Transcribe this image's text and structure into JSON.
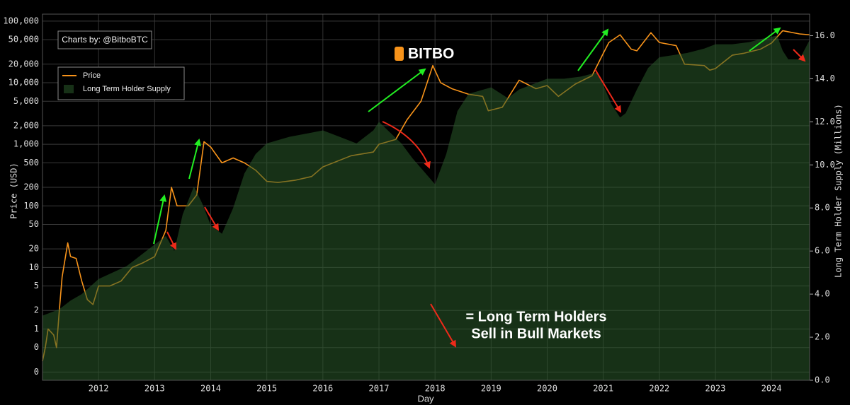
{
  "chart_data": {
    "type": "line",
    "credit": "Charts by: @BitboBTC",
    "logo": "BITBO",
    "annotation": [
      "= Long Term Holders",
      "Sell in Bull Markets"
    ],
    "xlabel": "Day",
    "ylabel": "Price (USD)",
    "y2label": "Long Term Holder Supply (Millions)",
    "log_scale": true,
    "grid": true,
    "legend": "upper left",
    "xlim": [
      2011.0,
      2024.68
    ],
    "xticks": [
      2012,
      2013,
      2014,
      2015,
      2016,
      2017,
      2018,
      2019,
      2020,
      2021,
      2022,
      2023,
      2024
    ],
    "ylim": [
      0.147,
      130000
    ],
    "yticks": [
      {
        "value": 0.2,
        "label": "0"
      },
      {
        "value": 0.5,
        "label": "0"
      },
      1,
      2,
      5,
      10,
      20,
      50,
      100,
      200,
      500,
      {
        "value": 1000,
        "label": "1,000"
      },
      {
        "value": 2000,
        "label": "2,000"
      },
      {
        "value": 5000,
        "label": "5,000"
      },
      {
        "value": 10000,
        "label": "10,000"
      },
      {
        "value": 20000,
        "label": "20,000"
      },
      {
        "value": 50000,
        "label": "50,000"
      },
      {
        "value": 100000,
        "label": "100,000"
      }
    ],
    "y2lim": [
      0,
      17
    ],
    "y2ticks": [
      {
        "value": 0,
        "label": "0.0"
      },
      {
        "value": 2,
        "label": "2.0"
      },
      {
        "value": 4,
        "label": "4.0"
      },
      {
        "value": 6,
        "label": "6.0"
      },
      {
        "value": 8,
        "label": "8.0"
      },
      {
        "value": 10,
        "label": "10.0"
      },
      {
        "value": 12,
        "label": "12.0"
      },
      {
        "value": 14,
        "label": "14.0"
      },
      {
        "value": 16,
        "label": "16.0"
      }
    ],
    "series": [
      {
        "name": "Price",
        "color": "#f7931a",
        "x": [
          2011.0,
          2011.05,
          2011.1,
          2011.2,
          2011.25,
          2011.3,
          2011.35,
          2011.45,
          2011.5,
          2011.6,
          2011.7,
          2011.8,
          2011.9,
          2012.0,
          2012.2,
          2012.4,
          2012.6,
          2012.8,
          2013.0,
          2013.2,
          2013.3,
          2013.4,
          2013.6,
          2013.75,
          2013.88,
          2014.0,
          2014.2,
          2014.4,
          2014.6,
          2014.8,
          2015.0,
          2015.2,
          2015.5,
          2015.8,
          2016.0,
          2016.5,
          2016.9,
          2017.0,
          2017.3,
          2017.5,
          2017.75,
          2017.96,
          2018.1,
          2018.3,
          2018.6,
          2018.85,
          2018.95,
          2019.2,
          2019.5,
          2019.8,
          2020.0,
          2020.2,
          2020.5,
          2020.8,
          2021.0,
          2021.1,
          2021.3,
          2021.5,
          2021.6,
          2021.85,
          2022.0,
          2022.3,
          2022.45,
          2022.8,
          2022.9,
          2023.0,
          2023.3,
          2023.5,
          2023.8,
          2024.0,
          2024.2,
          2024.5,
          2024.68
        ],
        "values": [
          0.3,
          0.5,
          1.0,
          0.8,
          0.5,
          2,
          7,
          25,
          15,
          14,
          6,
          3,
          2.5,
          5,
          5,
          6,
          10,
          12,
          15,
          40,
          200,
          100,
          100,
          150,
          1100,
          900,
          500,
          600,
          500,
          380,
          250,
          240,
          260,
          300,
          430,
          650,
          750,
          1000,
          1200,
          2500,
          5000,
          19000,
          10000,
          8000,
          6500,
          6000,
          3500,
          4000,
          11000,
          8000,
          9000,
          6000,
          9500,
          13000,
          30000,
          45000,
          60000,
          35000,
          33000,
          65000,
          45000,
          40000,
          20000,
          19000,
          16000,
          17000,
          28000,
          30000,
          35000,
          44000,
          70000,
          62000,
          60000
        ]
      },
      {
        "name": "Long Term Holder Supply",
        "color": "#2a5a2a",
        "type": "area",
        "axis": "y2",
        "x": [
          2011.0,
          2011.3,
          2011.5,
          2011.7,
          2012.0,
          2012.5,
          2013.0,
          2013.2,
          2013.35,
          2013.5,
          2013.7,
          2013.85,
          2014.0,
          2014.2,
          2014.4,
          2014.6,
          2014.8,
          2015.0,
          2015.4,
          2015.8,
          2016.0,
          2016.3,
          2016.6,
          2016.9,
          2017.0,
          2017.2,
          2017.4,
          2017.6,
          2017.8,
          2018.0,
          2018.2,
          2018.4,
          2018.6,
          2019.0,
          2019.3,
          2019.5,
          2019.8,
          2020.0,
          2020.3,
          2020.6,
          2020.9,
          2021.0,
          2021.15,
          2021.3,
          2021.4,
          2021.6,
          2021.8,
          2022.0,
          2022.5,
          2022.8,
          2023.0,
          2023.3,
          2023.6,
          2023.9,
          2024.1,
          2024.2,
          2024.3,
          2024.5,
          2024.68
        ],
        "values": [
          3.0,
          3.3,
          3.7,
          4.0,
          4.7,
          5.3,
          6.3,
          6.7,
          6.0,
          7.7,
          9.0,
          8.2,
          7.2,
          6.8,
          8.0,
          9.6,
          10.5,
          11.0,
          11.3,
          11.5,
          11.6,
          11.3,
          11.0,
          11.6,
          12.0,
          11.5,
          11.0,
          10.3,
          9.7,
          9.1,
          10.5,
          12.5,
          13.3,
          13.6,
          13.1,
          13.5,
          13.8,
          14.0,
          14.0,
          14.1,
          14.3,
          13.7,
          12.8,
          12.2,
          12.4,
          13.5,
          14.5,
          15.0,
          15.2,
          15.4,
          15.6,
          15.6,
          15.7,
          15.9,
          16.0,
          15.3,
          14.9,
          14.9,
          15.8
        ]
      }
    ]
  }
}
